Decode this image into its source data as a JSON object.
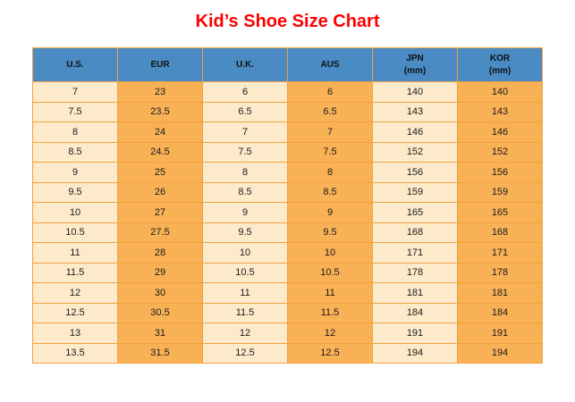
{
  "title": "Kid’s Shoe Size Chart",
  "table": {
    "headers": [
      {
        "label": "U.S.",
        "sub": ""
      },
      {
        "label": "EUR",
        "sub": ""
      },
      {
        "label": "U.K.",
        "sub": ""
      },
      {
        "label": "AUS",
        "sub": ""
      },
      {
        "label": "JPN",
        "sub": "(mm)"
      },
      {
        "label": "KOR",
        "sub": "(mm)"
      }
    ]
  },
  "chart_data": {
    "type": "table",
    "title": "Kid’s Shoe Size Chart",
    "columns": [
      "U.S.",
      "EUR",
      "U.K.",
      "AUS",
      "JPN (mm)",
      "KOR (mm)"
    ],
    "rows": [
      [
        7,
        23,
        6,
        6,
        140,
        140
      ],
      [
        7.5,
        23.5,
        6.5,
        6.5,
        143,
        143
      ],
      [
        8,
        24,
        7,
        7,
        146,
        146
      ],
      [
        8.5,
        24.5,
        7.5,
        7.5,
        152,
        152
      ],
      [
        9,
        25,
        8,
        8,
        156,
        156
      ],
      [
        9.5,
        26,
        8.5,
        8.5,
        159,
        159
      ],
      [
        10,
        27,
        9,
        9,
        165,
        165
      ],
      [
        10.5,
        27.5,
        9.5,
        9.5,
        168,
        168
      ],
      [
        11,
        28,
        10,
        10,
        171,
        171
      ],
      [
        11.5,
        29,
        10.5,
        10.5,
        178,
        178
      ],
      [
        12,
        30,
        11,
        11,
        181,
        181
      ],
      [
        12.5,
        30.5,
        11.5,
        11.5,
        184,
        184
      ],
      [
        13,
        31,
        12,
        12,
        191,
        191
      ],
      [
        13.5,
        31.5,
        12.5,
        12.5,
        194,
        194
      ]
    ]
  },
  "colors": {
    "title-red": "#fe0000",
    "header-blue": "#4a8bc4",
    "cell-cream": "#fdeacb",
    "cell-orange": "#f9b156",
    "border-orange": "#efa33f",
    "text-color": "#1b1b1b"
  }
}
